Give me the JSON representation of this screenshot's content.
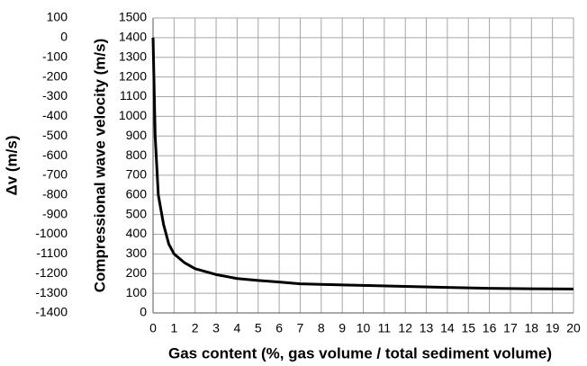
{
  "chart_data": {
    "type": "line",
    "xlabel": "Gas content (%, gas volume / total sediment volume)",
    "ylabel": "Δv (m/s)",
    "y2label": "Compressional wave velocity (m/s)",
    "x": [
      0,
      0.1,
      0.25,
      0.5,
      0.75,
      1,
      1.5,
      2,
      3,
      4,
      5,
      6,
      7,
      8,
      10,
      12,
      14,
      16,
      18,
      20
    ],
    "series": [
      {
        "name": "Compressional wave velocity",
        "color": "#000000",
        "axis": "y2",
        "values": [
          1400,
          900,
          600,
          450,
          350,
          300,
          255,
          225,
          195,
          175,
          165,
          157,
          148,
          145,
          140,
          135,
          130,
          125,
          123,
          122
        ]
      }
    ],
    "xlim": [
      0,
      20
    ],
    "xticks": [
      0,
      1,
      2,
      3,
      4,
      5,
      6,
      7,
      8,
      9,
      10,
      11,
      12,
      13,
      14,
      15,
      16,
      17,
      18,
      19,
      20
    ],
    "ylim": [
      -1400,
      100
    ],
    "yticks": [
      -1400,
      -1300,
      -1200,
      -1100,
      -1000,
      -900,
      -800,
      -700,
      -600,
      -500,
      -400,
      -300,
      -200,
      -100,
      0,
      100
    ],
    "y2lim": [
      0,
      1500
    ],
    "y2ticks": [
      0,
      100,
      200,
      300,
      400,
      500,
      600,
      700,
      800,
      900,
      1000,
      1100,
      1200,
      1300,
      1400,
      1500
    ],
    "grid": true
  }
}
